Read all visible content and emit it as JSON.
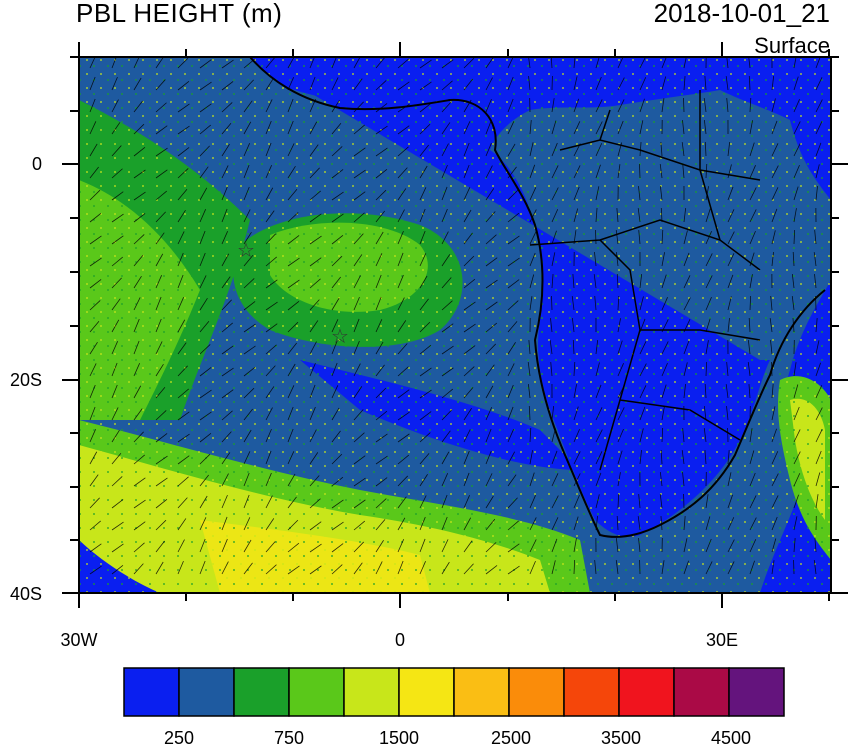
{
  "header": {
    "title": "PBL HEIGHT (m)",
    "datetime": "2018-10-01_21",
    "level": "Surface"
  },
  "axes": {
    "lat_ticks": [
      "0",
      "20S",
      "40S"
    ],
    "lon_ticks": [
      "30W",
      "0",
      "30E"
    ]
  },
  "colorbar": {
    "colors": [
      "#0a1ff0",
      "#1e5aa0",
      "#1aa02a",
      "#5ac81a",
      "#c8e61a",
      "#f5e614",
      "#fabe14",
      "#fa8c0a",
      "#f5460a",
      "#f0141e",
      "#aa0a46",
      "#64147d"
    ],
    "labels": [
      "250",
      "750",
      "1500",
      "2500",
      "3500",
      "4500"
    ]
  },
  "markers": {
    "station_icon": "star-icon"
  }
}
